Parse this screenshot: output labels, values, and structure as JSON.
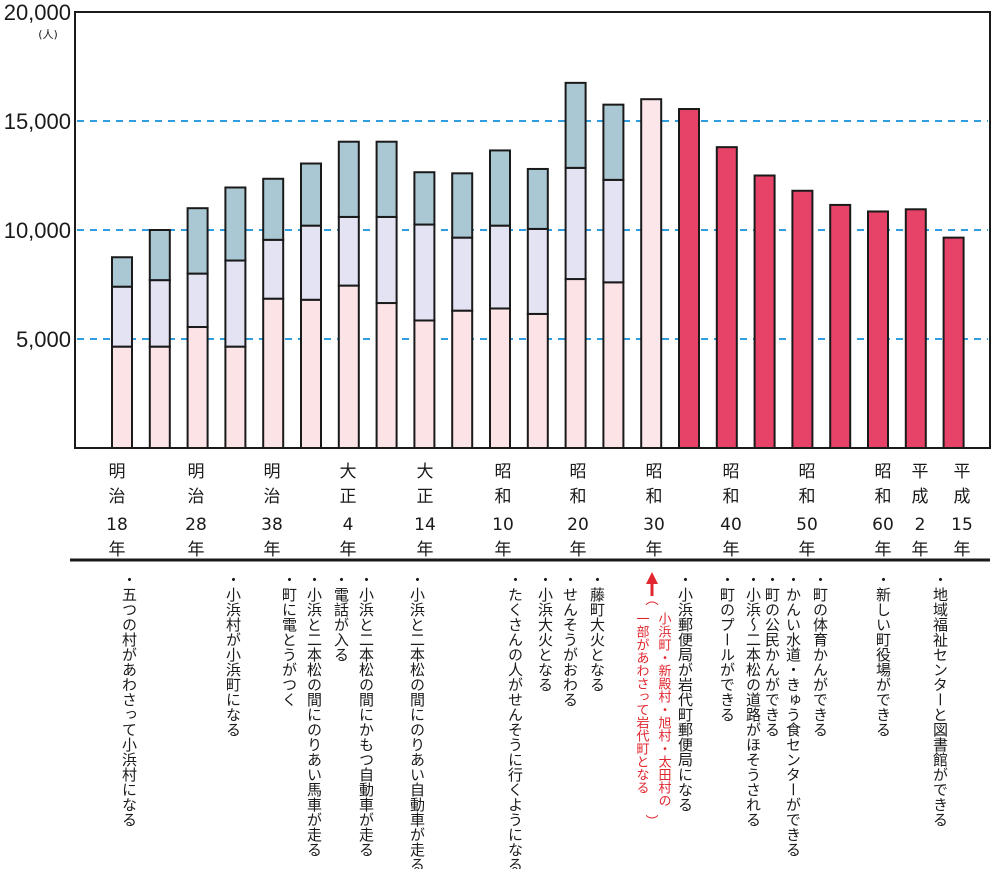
{
  "chart_data": {
    "type": "bar",
    "y_unit": "(人)",
    "ylim": [
      0,
      20000
    ],
    "y_ticks": [
      "5,000",
      "10,000",
      "15,000",
      "20,000"
    ],
    "grid": "dashed horizontal at 5,000 / 10,000 / 15,000",
    "x_labels": [
      {
        "era": [
          "明",
          "治"
        ],
        "year": "18",
        "unit": "年"
      },
      {
        "era": [
          "明",
          "治"
        ],
        "year": "28",
        "unit": "年"
      },
      {
        "era": [
          "明",
          "治"
        ],
        "year": "38",
        "unit": "年"
      },
      {
        "era": [
          "大",
          "正"
        ],
        "year": "4",
        "unit": "年"
      },
      {
        "era": [
          "大",
          "正"
        ],
        "year": "14",
        "unit": "年"
      },
      {
        "era": [
          "昭",
          "和"
        ],
        "year": "10",
        "unit": "年"
      },
      {
        "era": [
          "昭",
          "和"
        ],
        "year": "20",
        "unit": "年"
      },
      {
        "era": [
          "昭",
          "和"
        ],
        "year": "30",
        "unit": "年"
      },
      {
        "era": [
          "昭",
          "和"
        ],
        "year": "40",
        "unit": "年"
      },
      {
        "era": [
          "昭",
          "和"
        ],
        "year": "50",
        "unit": "年"
      },
      {
        "era": [
          "昭",
          "和"
        ],
        "year": "60",
        "unit": "年"
      },
      {
        "era": [
          "平",
          "成"
        ],
        "year": "2",
        "unit": "年"
      },
      {
        "era": [
          "平",
          "成"
        ],
        "year": "15",
        "unit": "年"
      }
    ],
    "stacked_bars": [
      {
        "segments": [
          4650,
          2750,
          1350
        ]
      },
      {
        "segments": [
          4650,
          3050,
          2300
        ]
      },
      {
        "segments": [
          5550,
          2450,
          3000
        ]
      },
      {
        "segments": [
          4650,
          3950,
          3350
        ]
      },
      {
        "segments": [
          6850,
          2700,
          2800
        ]
      },
      {
        "segments": [
          6800,
          3400,
          2850
        ]
      },
      {
        "segments": [
          7450,
          3150,
          3450
        ]
      },
      {
        "segments": [
          6650,
          3950,
          3450
        ]
      },
      {
        "segments": [
          5850,
          4400,
          2400
        ]
      },
      {
        "segments": [
          6300,
          3350,
          2950
        ]
      },
      {
        "segments": [
          6400,
          3800,
          3450
        ]
      },
      {
        "segments": [
          6150,
          3900,
          2750
        ]
      },
      {
        "segments": [
          7750,
          5100,
          3900
        ]
      },
      {
        "segments": [
          7600,
          4700,
          3450
        ]
      }
    ],
    "total_bars": [
      16000,
      15550,
      13800,
      12500,
      11800,
      11150,
      10850,
      10950,
      9650
    ],
    "colors": {
      "seg_bottom": "#fbe3e6",
      "seg_middle": "#e3e3f4",
      "seg_top": "#a9c8d3",
      "total_light": "#fce6ea",
      "total_dark": "#e74267",
      "grid": "#2f9de0",
      "outline": "#1a1a1a",
      "event_red": "#e0262e"
    },
    "events": [
      {
        "lines": [
          "・五つの村があわさって小浜村になる"
        ]
      },
      {
        "lines": [
          "・小浜村が小浜町になる"
        ]
      },
      {
        "lines": [
          "・町に電とうがつく"
        ]
      },
      {
        "lines": [
          "・小浜と二本松の間にのりあい馬車が走る"
        ]
      },
      {
        "lines": [
          "・電話が入る"
        ]
      },
      {
        "lines": [
          "・小浜と二本松の間にかもつ自動車が走る"
        ]
      },
      {
        "lines": [
          "・小浜と二本松の間にのりあい自動車が走る"
        ]
      },
      {
        "lines": [
          "・たくさんの人がせんそうに行くようになる"
        ]
      },
      {
        "lines": [
          "・小浜大火となる"
        ]
      },
      {
        "lines": [
          "・せんそうがおわる"
        ]
      },
      {
        "lines": [
          "・藤町大火となる"
        ]
      },
      {
        "lines": [
          "小浜町・新殿村・旭村・太田村の",
          "一部があわさって岩代町となる"
        ],
        "red": true
      },
      {
        "lines": [
          "・小浜郵便局が岩代町郵便局になる"
        ]
      },
      {
        "lines": [
          "・町のプールができる"
        ]
      },
      {
        "lines": [
          "・小浜〜二本松の道路がほそうされる"
        ]
      },
      {
        "lines": [
          "・町の公民かんができる"
        ]
      },
      {
        "lines": [
          "・かんい水道・きゅう食センターができる"
        ]
      },
      {
        "lines": [
          "・町の体育かんができる"
        ]
      },
      {
        "lines": [
          "・新しい町役場ができる"
        ]
      },
      {
        "lines": [
          "・地域福祉センターと図書館ができる"
        ]
      }
    ]
  }
}
